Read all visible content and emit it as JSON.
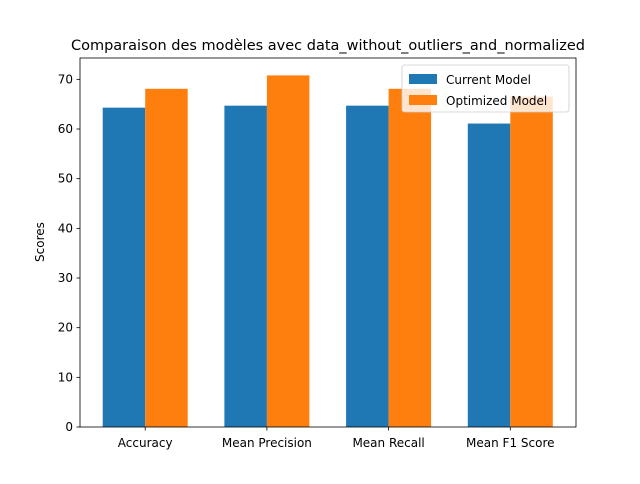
{
  "chart_data": {
    "type": "bar",
    "title": "Comparaison des modèles avec data_without_outliers_and_normalized",
    "xlabel": "",
    "ylabel": "Scores",
    "categories": [
      "Accuracy",
      "Mean Precision",
      "Mean Recall",
      "Mean F1 Score"
    ],
    "series": [
      {
        "name": "Current Model",
        "color": "#1f77b4",
        "values": [
          64.3,
          64.7,
          64.7,
          61.1
        ]
      },
      {
        "name": "Optimized Model",
        "color": "#ff7f0e",
        "values": [
          68.1,
          70.8,
          68.1,
          66.5
        ]
      }
    ],
    "ylim": [
      0,
      74.3
    ],
    "yticks": [
      0,
      10,
      20,
      30,
      40,
      50,
      60,
      70
    ],
    "grid": false,
    "legend_position": "top-right"
  }
}
